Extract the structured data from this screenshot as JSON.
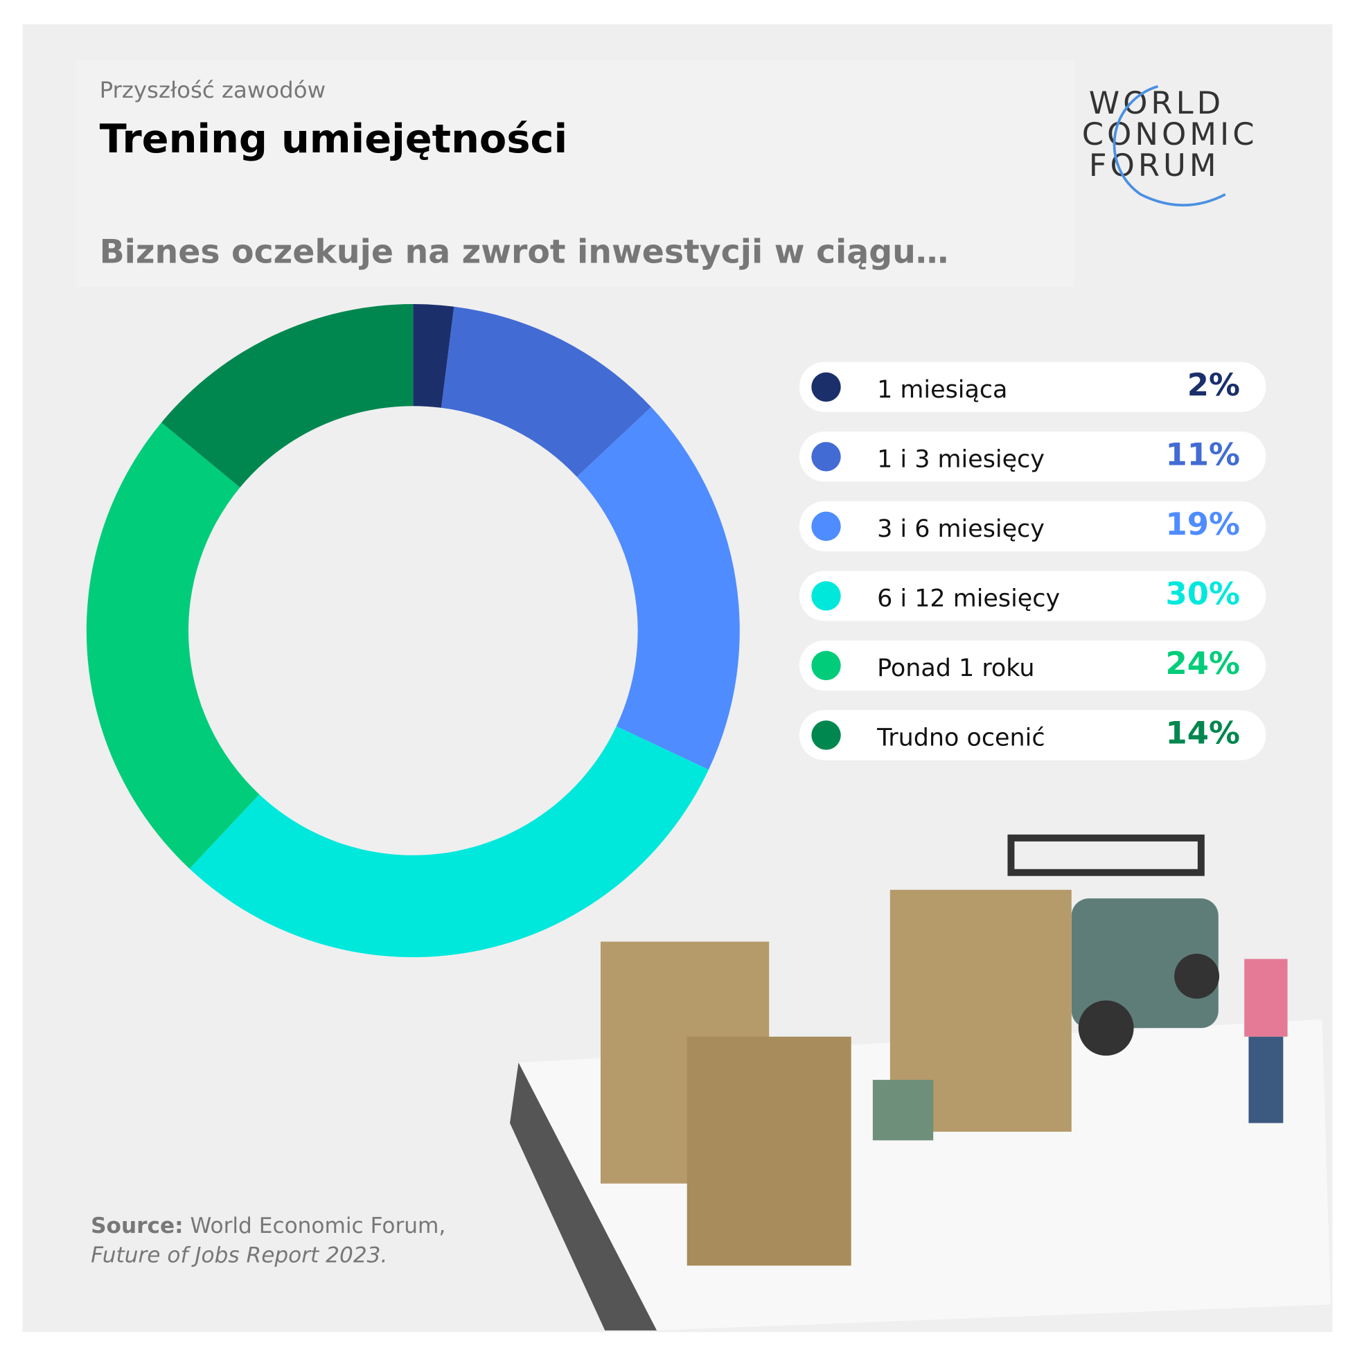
{
  "chart_data": {
    "type": "pie",
    "supertitle": "Przyszłość zawodów",
    "title": "Trening umiejętności",
    "subtitle": "Biznes oczekuje na zwrot inwestycji w ciągu…",
    "logo": [
      "WORLD",
      "CONOMIC",
      "FORUM"
    ],
    "categories": [
      "1 miesiąca",
      "1 i 3 miesięcy",
      "3 i 6 miesięcy",
      "6 i 12 miesięcy",
      "Ponad 1 roku",
      "Trudno ocenić"
    ],
    "values": [
      2,
      11,
      19,
      30,
      24,
      14
    ],
    "value_labels": [
      "2%",
      "11%",
      "19%",
      "30%",
      "24%",
      "14%"
    ],
    "colors": [
      "#1b2f6b",
      "#426bd4",
      "#4f8cff",
      "#00e8dc",
      "#00cc7a",
      "#00874f"
    ],
    "source": {
      "label": "Source:",
      "text": "World Economic Forum,",
      "report": "Future of Jobs Report 2023."
    }
  }
}
